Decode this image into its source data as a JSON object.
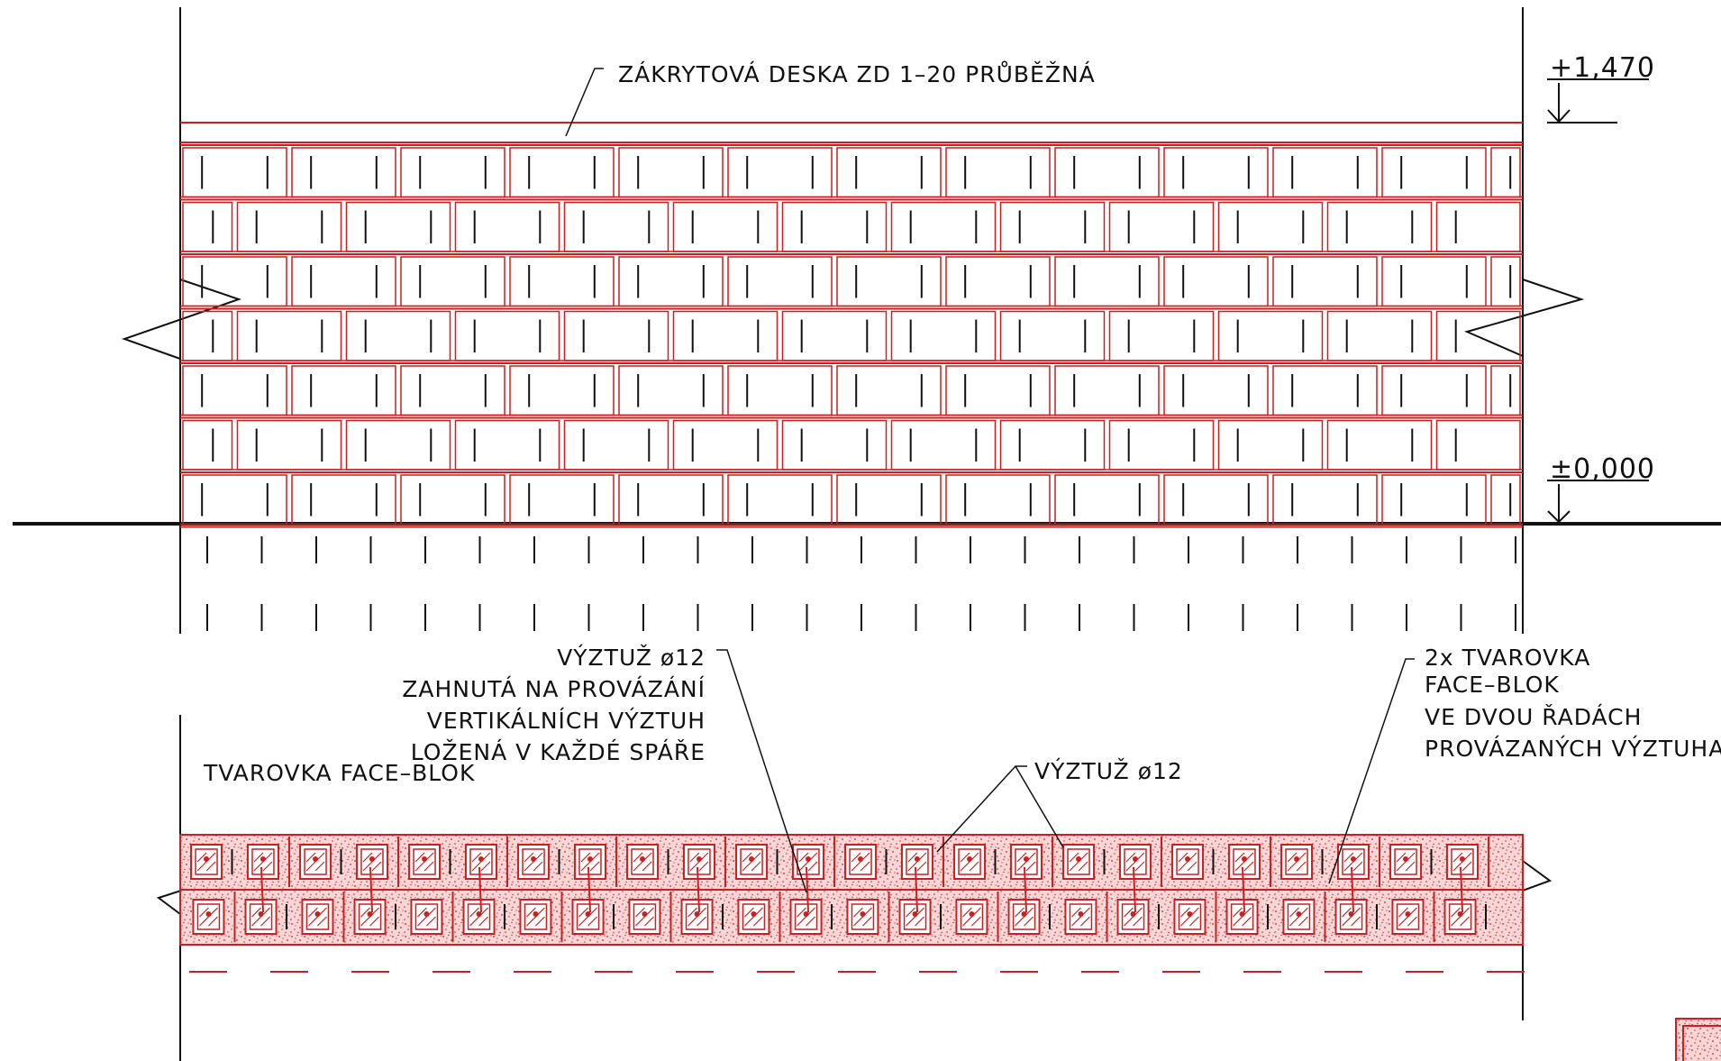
{
  "colors": {
    "ink": "#111111",
    "brick": "#cc1f1f",
    "fill": "#f3c9c9",
    "background": "#ffffff"
  },
  "levels": {
    "top": "+1,470",
    "ground": "±0,000"
  },
  "labels": {
    "coping": "ZÁKRYTOVÁ DESKA ZD 1–20 PRŮBĚŽNÁ",
    "rebar_bent": [
      "VÝZTUŽ ø12",
      "ZAHNUTÁ NA PROVÁZÁNÍ",
      "VERTIKÁLNÍCH VÝZTUH",
      "LOŽENÁ V KAŽDÉ SPÁŘE"
    ],
    "block_single": "TVAROVKA FACE–BLOK",
    "rebar": "VÝZTUŽ ø12",
    "block_double": [
      "2x TVAROVKA",
      "FACE–BLOK",
      "VE DVOU ŘADÁCH",
      "PROVÁZANÝCH VÝZTUHAMI"
    ]
  }
}
